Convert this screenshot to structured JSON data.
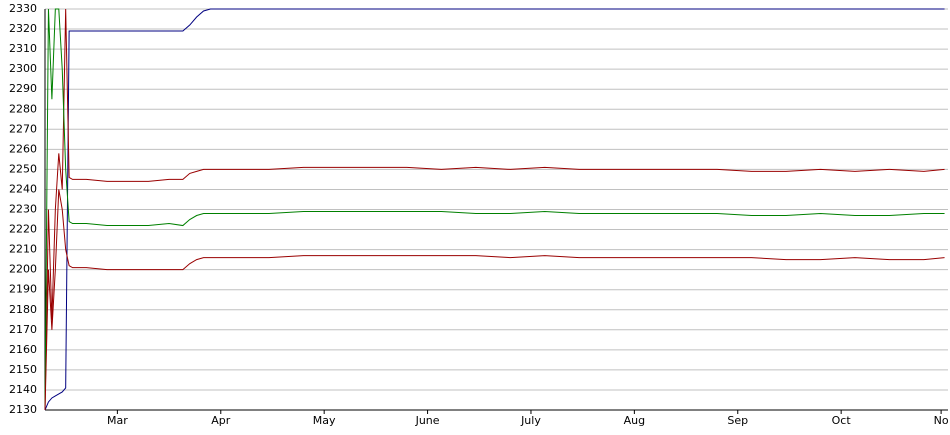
{
  "chart_data": {
    "type": "line",
    "x": [
      0,
      1,
      2,
      3,
      4,
      5,
      6,
      7,
      8,
      12,
      18,
      24,
      30,
      36,
      40,
      42,
      44,
      46,
      48,
      55,
      65,
      75,
      85,
      95,
      105,
      115,
      125,
      135,
      145,
      155,
      165,
      175,
      185,
      195,
      205,
      215,
      225,
      235,
      245,
      255,
      261
    ],
    "series": [
      {
        "color": "#000080",
        "values": [
          2130,
          2134,
          2136,
          2137,
          2138,
          2139,
          2141,
          2319,
          2319,
          2319,
          2319,
          2319,
          2319,
          2319,
          2319,
          2322,
          2326,
          2329,
          2330,
          2330,
          2330,
          2330,
          2330,
          2330,
          2330,
          2330,
          2330,
          2330,
          2330,
          2330,
          2330,
          2330,
          2330,
          2330,
          2330,
          2330,
          2330,
          2330,
          2330,
          2330,
          2330
        ]
      },
      {
        "color": "#990000",
        "values": [
          2130,
          2230,
          2175,
          2230,
          2258,
          2240,
          2330,
          2246,
          2245,
          2245,
          2244,
          2244,
          2244,
          2245,
          2245,
          2248,
          2249,
          2250,
          2250,
          2250,
          2250,
          2251,
          2251,
          2251,
          2251,
          2250,
          2251,
          2250,
          2251,
          2250,
          2250,
          2250,
          2250,
          2250,
          2249,
          2249,
          2250,
          2249,
          2250,
          2249,
          2250
        ]
      },
      {
        "color": "#008000",
        "values": [
          2130,
          2330,
          2285,
          2330,
          2330,
          2300,
          2250,
          2224,
          2223,
          2223,
          2222,
          2222,
          2222,
          2223,
          2222,
          2225,
          2227,
          2228,
          2228,
          2228,
          2228,
          2229,
          2229,
          2229,
          2229,
          2229,
          2228,
          2228,
          2229,
          2228,
          2228,
          2228,
          2228,
          2228,
          2227,
          2227,
          2228,
          2227,
          2227,
          2228,
          2228
        ]
      },
      {
        "color": "#990000",
        "values": [
          2130,
          2200,
          2170,
          2200,
          2240,
          2230,
          2210,
          2202,
          2201,
          2201,
          2200,
          2200,
          2200,
          2200,
          2200,
          2203,
          2205,
          2206,
          2206,
          2206,
          2206,
          2207,
          2207,
          2207,
          2207,
          2207,
          2207,
          2206,
          2207,
          2206,
          2206,
          2206,
          2206,
          2206,
          2206,
          2205,
          2205,
          2206,
          2205,
          2205,
          2206
        ]
      }
    ],
    "xlim": [
      0,
      262
    ],
    "xticks": [
      {
        "value": 21,
        "label": "Mar"
      },
      {
        "value": 51,
        "label": "Apr"
      },
      {
        "value": 81,
        "label": "May"
      },
      {
        "value": 111,
        "label": "June"
      },
      {
        "value": 141,
        "label": "July"
      },
      {
        "value": 171,
        "label": "Aug"
      },
      {
        "value": 201,
        "label": "Sep"
      },
      {
        "value": 231,
        "label": "Oct"
      },
      {
        "value": 260,
        "label": "No"
      }
    ],
    "ylim": [
      2130,
      2330
    ],
    "yticks": [
      2130,
      2140,
      2150,
      2160,
      2170,
      2180,
      2190,
      2200,
      2210,
      2220,
      2230,
      2240,
      2250,
      2260,
      2270,
      2280,
      2290,
      2300,
      2310,
      2320,
      2330
    ],
    "grid": true
  }
}
